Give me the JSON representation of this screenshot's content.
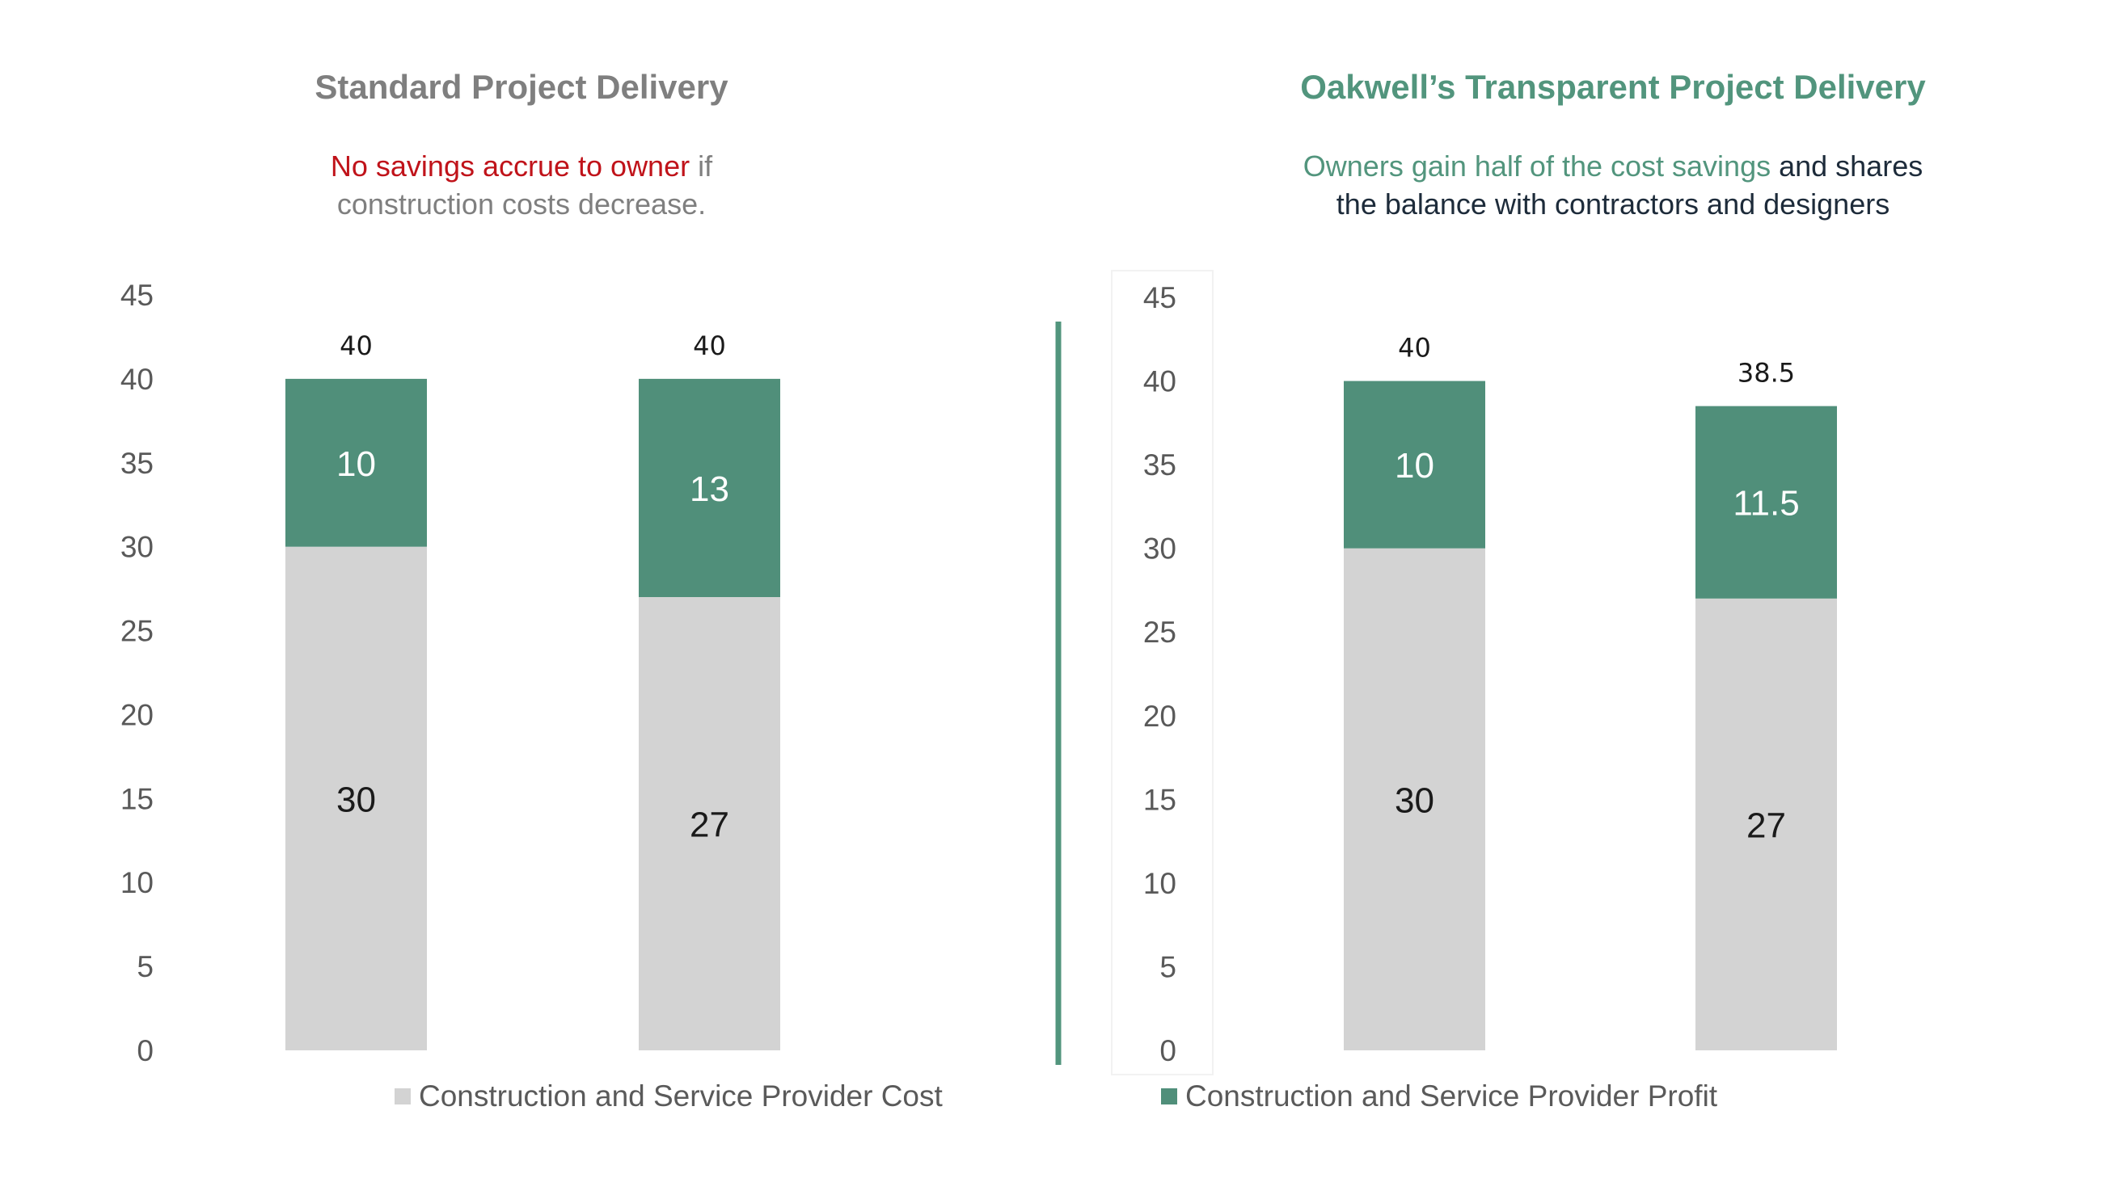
{
  "colors": {
    "cost": "#d3d3d3",
    "profit": "#508f7a",
    "left_title": "#7f7f7f",
    "right_title": "#52957d",
    "negative_accent": "#c0131a",
    "body_gray": "#7f7f7f",
    "dark_text": "#1d2b3a",
    "divider": "#52957d"
  },
  "panels": {
    "left": {
      "title": "Standard Project Delivery",
      "subtitle_highlight": "No savings accrue to owner",
      "subtitle_rest_1": " if",
      "subtitle_rest_2": "construction costs decrease."
    },
    "right": {
      "title": "Oakwell’s Transparent Project Delivery",
      "subtitle_highlight": "Owners gain half of the cost savings",
      "subtitle_rest_1": " and shares",
      "subtitle_rest_2": "the balance with contractors and designers"
    }
  },
  "legend": {
    "cost": "Construction and Service Provider Cost",
    "profit": "Construction and Service Provider Profit"
  },
  "chart_data": [
    {
      "type": "bar",
      "stacked": true,
      "title": "Standard Project Delivery",
      "categories": [
        "",
        ""
      ],
      "series": [
        {
          "name": "Construction and Service Provider Cost",
          "values": [
            30,
            27
          ]
        },
        {
          "name": "Construction and Service Provider Profit",
          "values": [
            10,
            13
          ]
        }
      ],
      "totals": [
        40,
        40
      ],
      "ylim": [
        0,
        45
      ],
      "yticks": [
        0,
        5,
        10,
        15,
        20,
        25,
        30,
        35,
        40,
        45
      ],
      "grid": false,
      "legend_position": "bottom"
    },
    {
      "type": "bar",
      "stacked": true,
      "title": "Oakwell’s Transparent Project Delivery",
      "categories": [
        "",
        ""
      ],
      "series": [
        {
          "name": "Construction and Service Provider Cost",
          "values": [
            30,
            27
          ]
        },
        {
          "name": "Construction and Service Provider Profit",
          "values": [
            10,
            11.5
          ]
        }
      ],
      "totals": [
        40,
        38.5
      ],
      "ylim": [
        0,
        45
      ],
      "yticks": [
        0,
        5,
        10,
        15,
        20,
        25,
        30,
        35,
        40,
        45
      ],
      "grid": false,
      "legend_position": "bottom"
    }
  ]
}
